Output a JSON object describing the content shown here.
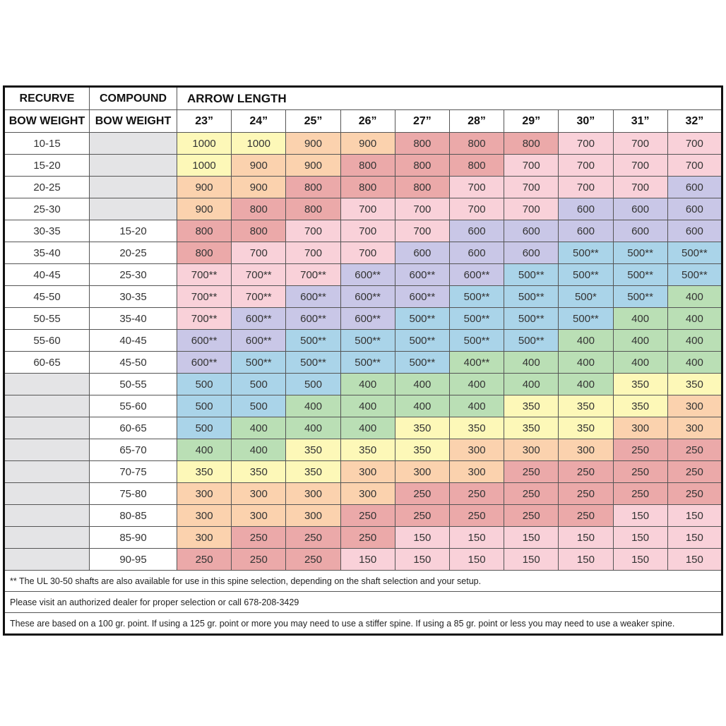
{
  "header": {
    "recurve": "RECURVE",
    "compound": "COMPOUND",
    "arrow_length": "ARROW LENGTH",
    "recurve_sub": "BOW WEIGHT",
    "compound_sub": "BOW WEIGHT",
    "lengths": [
      "23”",
      "24”",
      "25”",
      "26”",
      "27”",
      "28”",
      "29”",
      "30”",
      "31”",
      "32”"
    ]
  },
  "empty_color": "#e4e4e6",
  "rows": [
    {
      "recurve": "10-15",
      "compound": null,
      "spines": [
        "1000",
        "1000",
        "900",
        "900",
        "800",
        "800",
        "800",
        "700",
        "700",
        "700"
      ],
      "colors": [
        "#fdf8b8",
        "#fdf8b8",
        "#fbd2ae",
        "#fbd2ae",
        "#eba9a9",
        "#eba9a9",
        "#eba9a9",
        "#f9d1d9",
        "#f9d1d9",
        "#f9d1d9"
      ]
    },
    {
      "recurve": "15-20",
      "compound": null,
      "spines": [
        "1000",
        "900",
        "900",
        "800",
        "800",
        "800",
        "700",
        "700",
        "700",
        "700"
      ],
      "colors": [
        "#fdf8b8",
        "#fbd2ae",
        "#fbd2ae",
        "#eba9a9",
        "#eba9a9",
        "#eba9a9",
        "#f9d1d9",
        "#f9d1d9",
        "#f9d1d9",
        "#f9d1d9"
      ]
    },
    {
      "recurve": "20-25",
      "compound": null,
      "spines": [
        "900",
        "900",
        "800",
        "800",
        "800",
        "700",
        "700",
        "700",
        "700",
        "600"
      ],
      "colors": [
        "#fbd2ae",
        "#fbd2ae",
        "#eba9a9",
        "#eba9a9",
        "#eba9a9",
        "#f9d1d9",
        "#f9d1d9",
        "#f9d1d9",
        "#f9d1d9",
        "#c9c7e7"
      ]
    },
    {
      "recurve": "25-30",
      "compound": null,
      "spines": [
        "900",
        "800",
        "800",
        "700",
        "700",
        "700",
        "700",
        "600",
        "600",
        "600"
      ],
      "colors": [
        "#fbd2ae",
        "#eba9a9",
        "#eba9a9",
        "#f9d1d9",
        "#f9d1d9",
        "#f9d1d9",
        "#f9d1d9",
        "#c9c7e7",
        "#c9c7e7",
        "#c9c7e7"
      ]
    },
    {
      "recurve": "30-35",
      "compound": "15-20",
      "spines": [
        "800",
        "800",
        "700",
        "700",
        "700",
        "600",
        "600",
        "600",
        "600",
        "600"
      ],
      "colors": [
        "#eba9a9",
        "#eba9a9",
        "#f9d1d9",
        "#f9d1d9",
        "#f9d1d9",
        "#c9c7e7",
        "#c9c7e7",
        "#c9c7e7",
        "#c9c7e7",
        "#c9c7e7"
      ]
    },
    {
      "recurve": "35-40",
      "compound": "20-25",
      "spines": [
        "800",
        "700",
        "700",
        "700",
        "600",
        "600",
        "600",
        "500**",
        "500**",
        "500**"
      ],
      "colors": [
        "#eba9a9",
        "#f9d1d9",
        "#f9d1d9",
        "#f9d1d9",
        "#c9c7e7",
        "#c9c7e7",
        "#c9c7e7",
        "#aad4e9",
        "#aad4e9",
        "#aad4e9"
      ]
    },
    {
      "recurve": "40-45",
      "compound": "25-30",
      "spines": [
        "700**",
        "700**",
        "700**",
        "600**",
        "600**",
        "600**",
        "500**",
        "500**",
        "500**",
        "500**"
      ],
      "colors": [
        "#f9d1d9",
        "#f9d1d9",
        "#f9d1d9",
        "#c9c7e7",
        "#c9c7e7",
        "#c9c7e7",
        "#aad4e9",
        "#aad4e9",
        "#aad4e9",
        "#aad4e9"
      ]
    },
    {
      "recurve": "45-50",
      "compound": "30-35",
      "spines": [
        "700**",
        "700**",
        "600**",
        "600**",
        "600**",
        "500**",
        "500**",
        "500*",
        "500**",
        "400"
      ],
      "colors": [
        "#f9d1d9",
        "#f9d1d9",
        "#c9c7e7",
        "#c9c7e7",
        "#c9c7e7",
        "#aad4e9",
        "#aad4e9",
        "#aad4e9",
        "#aad4e9",
        "#badfb5"
      ]
    },
    {
      "recurve": "50-55",
      "compound": "35-40",
      "spines": [
        "700**",
        "600**",
        "600**",
        "600**",
        "500**",
        "500**",
        "500**",
        "500**",
        "400",
        "400"
      ],
      "colors": [
        "#f9d1d9",
        "#c9c7e7",
        "#c9c7e7",
        "#c9c7e7",
        "#aad4e9",
        "#aad4e9",
        "#aad4e9",
        "#aad4e9",
        "#badfb5",
        "#badfb5"
      ]
    },
    {
      "recurve": "55-60",
      "compound": "40-45",
      "spines": [
        "600**",
        "600**",
        "500**",
        "500**",
        "500**",
        "500**",
        "500**",
        "400",
        "400",
        "400"
      ],
      "colors": [
        "#c9c7e7",
        "#c9c7e7",
        "#aad4e9",
        "#aad4e9",
        "#aad4e9",
        "#aad4e9",
        "#aad4e9",
        "#badfb5",
        "#badfb5",
        "#badfb5"
      ]
    },
    {
      "recurve": "60-65",
      "compound": "45-50",
      "spines": [
        "600**",
        "500**",
        "500**",
        "500**",
        "500**",
        "400**",
        "400",
        "400",
        "400",
        "400"
      ],
      "colors": [
        "#c9c7e7",
        "#aad4e9",
        "#aad4e9",
        "#aad4e9",
        "#aad4e9",
        "#badfb5",
        "#badfb5",
        "#badfb5",
        "#badfb5",
        "#badfb5"
      ]
    },
    {
      "recurve": null,
      "compound": "50-55",
      "spines": [
        "500",
        "500",
        "500",
        "400",
        "400",
        "400",
        "400",
        "400",
        "350",
        "350"
      ],
      "colors": [
        "#aad4e9",
        "#aad4e9",
        "#aad4e9",
        "#badfb5",
        "#badfb5",
        "#badfb5",
        "#badfb5",
        "#badfb5",
        "#fdf8b8",
        "#fdf8b8"
      ]
    },
    {
      "recurve": null,
      "compound": "55-60",
      "spines": [
        "500",
        "500",
        "400",
        "400",
        "400",
        "400",
        "350",
        "350",
        "350",
        "300"
      ],
      "colors": [
        "#aad4e9",
        "#aad4e9",
        "#badfb5",
        "#badfb5",
        "#badfb5",
        "#badfb5",
        "#fdf8b8",
        "#fdf8b8",
        "#fdf8b8",
        "#fbd2ae"
      ]
    },
    {
      "recurve": null,
      "compound": "60-65",
      "spines": [
        "500",
        "400",
        "400",
        "400",
        "350",
        "350",
        "350",
        "350",
        "300",
        "300"
      ],
      "colors": [
        "#aad4e9",
        "#badfb5",
        "#badfb5",
        "#badfb5",
        "#fdf8b8",
        "#fdf8b8",
        "#fdf8b8",
        "#fdf8b8",
        "#fbd2ae",
        "#fbd2ae"
      ]
    },
    {
      "recurve": null,
      "compound": "65-70",
      "spines": [
        "400",
        "400",
        "350",
        "350",
        "350",
        "300",
        "300",
        "300",
        "250",
        "250"
      ],
      "colors": [
        "#badfb5",
        "#badfb5",
        "#fdf8b8",
        "#fdf8b8",
        "#fdf8b8",
        "#fbd2ae",
        "#fbd2ae",
        "#fbd2ae",
        "#eba9a9",
        "#eba9a9"
      ]
    },
    {
      "recurve": null,
      "compound": "70-75",
      "spines": [
        "350",
        "350",
        "350",
        "300",
        "300",
        "300",
        "250",
        "250",
        "250",
        "250"
      ],
      "colors": [
        "#fdf8b8",
        "#fdf8b8",
        "#fdf8b8",
        "#fbd2ae",
        "#fbd2ae",
        "#fbd2ae",
        "#eba9a9",
        "#eba9a9",
        "#eba9a9",
        "#eba9a9"
      ]
    },
    {
      "recurve": null,
      "compound": "75-80",
      "spines": [
        "300",
        "300",
        "300",
        "300",
        "250",
        "250",
        "250",
        "250",
        "250",
        "250"
      ],
      "colors": [
        "#fbd2ae",
        "#fbd2ae",
        "#fbd2ae",
        "#fbd2ae",
        "#eba9a9",
        "#eba9a9",
        "#eba9a9",
        "#eba9a9",
        "#eba9a9",
        "#eba9a9"
      ]
    },
    {
      "recurve": null,
      "compound": "80-85",
      "spines": [
        "300",
        "300",
        "300",
        "250",
        "250",
        "250",
        "250",
        "250",
        "150",
        "150"
      ],
      "colors": [
        "#fbd2ae",
        "#fbd2ae",
        "#fbd2ae",
        "#eba9a9",
        "#eba9a9",
        "#eba9a9",
        "#eba9a9",
        "#eba9a9",
        "#f9d1d9",
        "#f9d1d9"
      ]
    },
    {
      "recurve": null,
      "compound": "85-90",
      "spines": [
        "300",
        "250",
        "250",
        "250",
        "150",
        "150",
        "150",
        "150",
        "150",
        "150"
      ],
      "colors": [
        "#fbd2ae",
        "#eba9a9",
        "#eba9a9",
        "#eba9a9",
        "#f9d1d9",
        "#f9d1d9",
        "#f9d1d9",
        "#f9d1d9",
        "#f9d1d9",
        "#f9d1d9"
      ]
    },
    {
      "recurve": null,
      "compound": "90-95",
      "spines": [
        "250",
        "250",
        "250",
        "150",
        "150",
        "150",
        "150",
        "150",
        "150",
        "150"
      ],
      "colors": [
        "#eba9a9",
        "#eba9a9",
        "#eba9a9",
        "#f9d1d9",
        "#f9d1d9",
        "#f9d1d9",
        "#f9d1d9",
        "#f9d1d9",
        "#f9d1d9",
        "#f9d1d9"
      ]
    }
  ],
  "notes": [
    "** The UL 30-50 shafts are also available for use in this spine selection, depending on the shaft selection and your setup.",
    "Please visit an authorized dealer for proper selection or call 678-208-3429",
    "These are based on a 100 gr. point. If using a 125 gr. point or more you may need to use a stiffer spine. If using a 85 gr. point or less you may need to use a weaker spine."
  ]
}
